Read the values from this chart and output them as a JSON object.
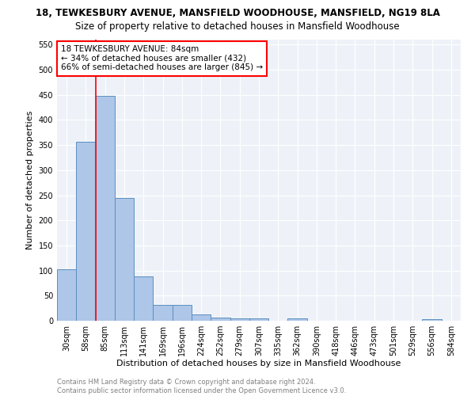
{
  "title": "18, TEWKESBURY AVENUE, MANSFIELD WOODHOUSE, MANSFIELD, NG19 8LA",
  "subtitle": "Size of property relative to detached houses in Mansfield Woodhouse",
  "xlabel": "Distribution of detached houses by size in Mansfield Woodhouse",
  "ylabel": "Number of detached properties",
  "bar_labels": [
    "30sqm",
    "58sqm",
    "85sqm",
    "113sqm",
    "141sqm",
    "169sqm",
    "196sqm",
    "224sqm",
    "252sqm",
    "279sqm",
    "307sqm",
    "335sqm",
    "362sqm",
    "390sqm",
    "418sqm",
    "446sqm",
    "473sqm",
    "501sqm",
    "529sqm",
    "556sqm",
    "584sqm"
  ],
  "bar_values": [
    103,
    357,
    448,
    245,
    88,
    32,
    32,
    13,
    7,
    5,
    5,
    0,
    5,
    0,
    0,
    0,
    0,
    0,
    0,
    3,
    0
  ],
  "bar_color": "#aec6e8",
  "bar_edge_color": "#5a8fc0",
  "bg_color": "#eef2f8",
  "grid_color": "#ffffff",
  "annotation_line1": "18 TEWKESBURY AVENUE: 84sqm",
  "annotation_line2": "← 34% of detached houses are smaller (432)",
  "annotation_line3": "66% of semi-detached houses are larger (845) →",
  "annotation_box_color": "white",
  "annotation_box_edge": "red",
  "ylim": [
    0,
    560
  ],
  "yticks": [
    0,
    50,
    100,
    150,
    200,
    250,
    300,
    350,
    400,
    450,
    500,
    550
  ],
  "footer_line1": "Contains HM Land Registry data © Crown copyright and database right 2024.",
  "footer_line2": "Contains public sector information licensed under the Open Government Licence v3.0.",
  "title_fontsize": 8.5,
  "subtitle_fontsize": 8.5,
  "xlabel_fontsize": 8,
  "ylabel_fontsize": 8,
  "tick_fontsize": 7,
  "annotation_fontsize": 7.5,
  "footer_fontsize": 6
}
